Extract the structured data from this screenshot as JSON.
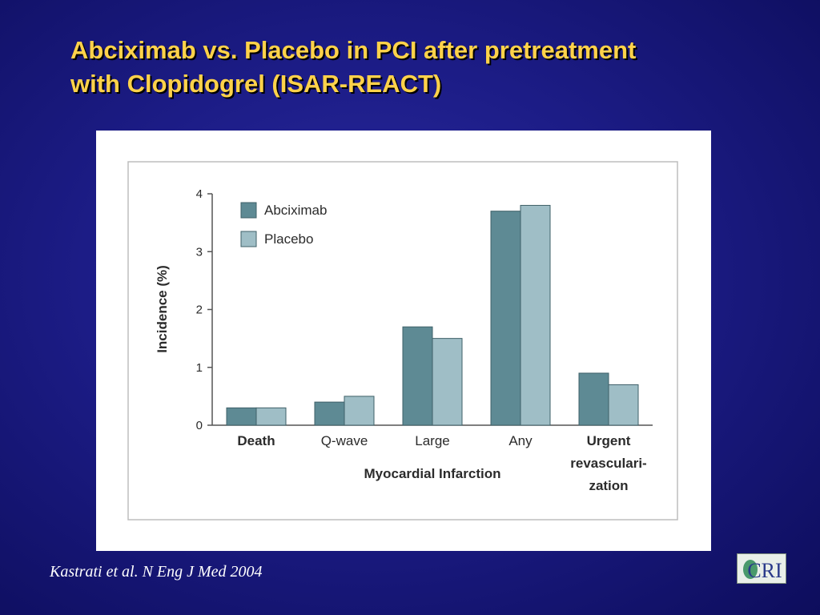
{
  "slide": {
    "title_line1": "Abciximab vs. Placebo in PCI after pretreatment",
    "title_line2": "with Clopidogrel (ISAR-REACT)",
    "citation": "Kastrati et al. N Eng J Med 2004",
    "logo_text": "CRI",
    "colors": {
      "title": "#ffd24a",
      "background": "#1c1c86",
      "abciximab": "#5e8a94",
      "placebo": "#9fbec6"
    }
  },
  "chart_data": {
    "type": "bar",
    "categories": [
      "Death",
      "Q-wave",
      "Large",
      "Any",
      "Urgent revasculari- zation"
    ],
    "category_lines": [
      [
        "Death"
      ],
      [
        "Q-wave"
      ],
      [
        "Large"
      ],
      [
        "Any"
      ],
      [
        "Urgent",
        "revasculari-",
        "zation"
      ]
    ],
    "category_bold": [
      true,
      false,
      false,
      false,
      true
    ],
    "series": [
      {
        "name": "Abciximab",
        "values": [
          0.3,
          0.4,
          1.7,
          3.7,
          0.9
        ],
        "color": "#5e8a94"
      },
      {
        "name": "Placebo",
        "values": [
          0.3,
          0.5,
          1.5,
          3.8,
          0.7
        ],
        "color": "#9fbec6"
      }
    ],
    "ylabel": "Incidence (%)",
    "group_label": "Myocardial Infarction",
    "ylim": [
      0,
      4
    ],
    "yticks": [
      "0",
      "1",
      "2",
      "3",
      "4"
    ],
    "grid": false,
    "legend": "top-left"
  }
}
